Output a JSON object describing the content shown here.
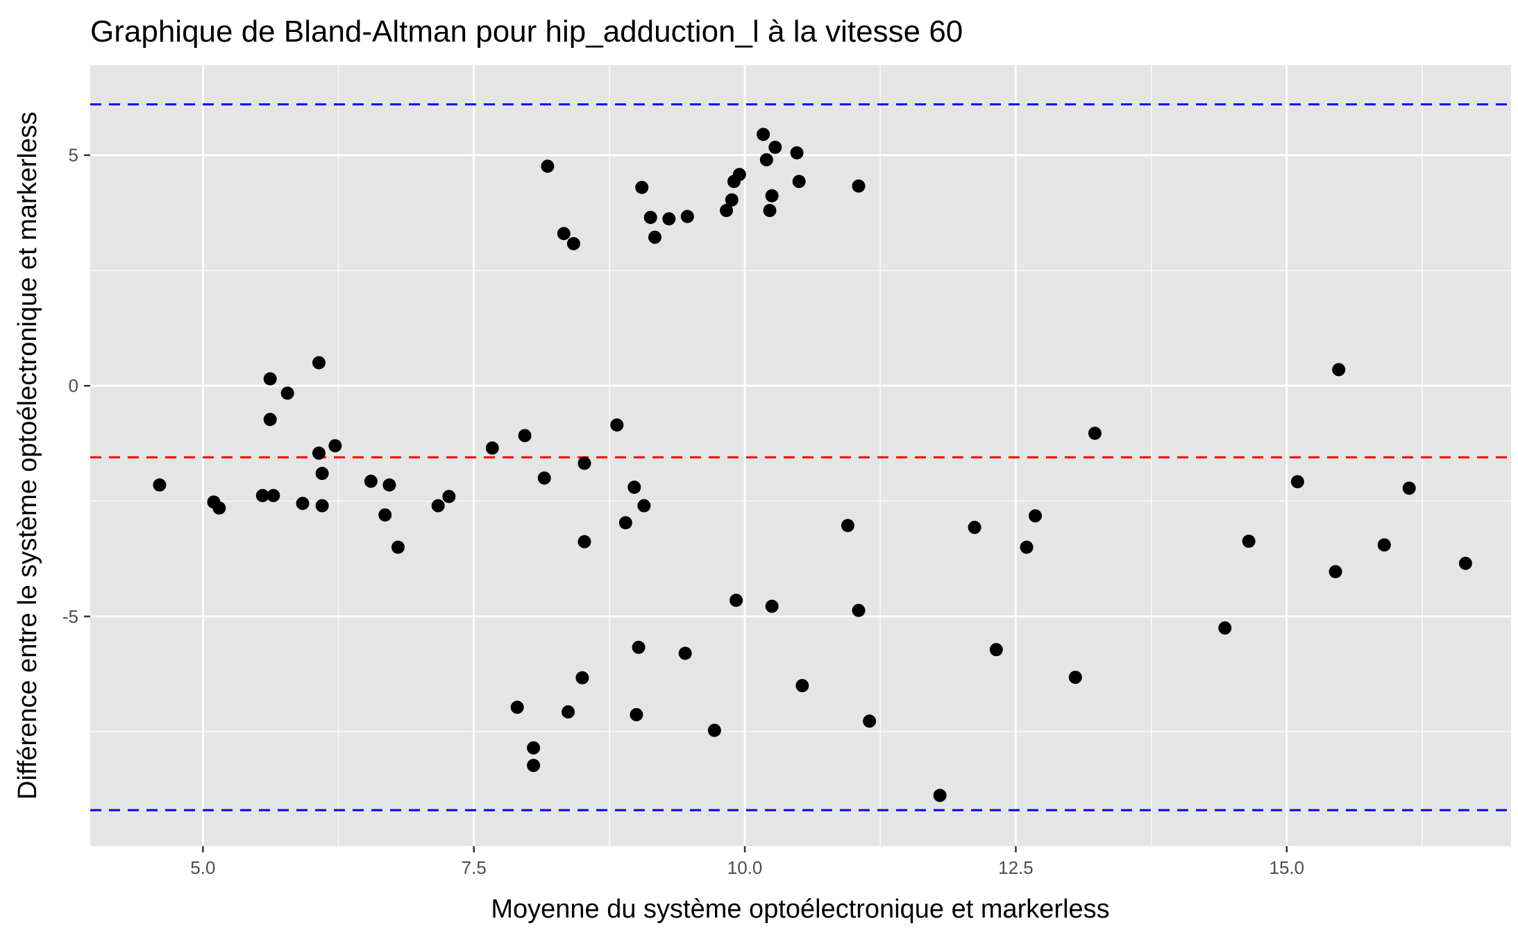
{
  "chart_data": {
    "type": "scatter",
    "title": "Graphique de Bland-Altman pour hip_adduction_l à la vitesse 60",
    "xlabel": "Moyenne du système optoélectronique et markerless",
    "ylabel": "Différence entre le système optoélectronique et markerless",
    "xlim": [
      3.96,
      17.07
    ],
    "ylim": [
      -9.98,
      6.95
    ],
    "x_ticks": [
      5.0,
      7.5,
      10.0,
      12.5,
      15.0
    ],
    "x_tick_labels": [
      "5.0",
      "7.5",
      "10.0",
      "12.5",
      "15.0"
    ],
    "y_ticks": [
      5,
      0,
      -5
    ],
    "y_tick_labels": [
      "5",
      "0",
      "-5"
    ],
    "grid": true,
    "reference_lines": [
      {
        "role": "upper_limit",
        "y": 6.1,
        "color": "#0000ff",
        "style": "dashed"
      },
      {
        "role": "mean_difference",
        "y": -1.55,
        "color": "#ff0000",
        "style": "dashed"
      },
      {
        "role": "lower_limit",
        "y": -9.2,
        "color": "#0000ff",
        "style": "dashed"
      }
    ],
    "points": [
      [
        4.6,
        -2.15
      ],
      [
        5.1,
        -2.52
      ],
      [
        5.15,
        -2.65
      ],
      [
        5.55,
        -2.38
      ],
      [
        5.65,
        -2.38
      ],
      [
        5.62,
        0.15
      ],
      [
        5.62,
        -0.73
      ],
      [
        5.78,
        -0.16
      ],
      [
        5.92,
        -2.55
      ],
      [
        6.07,
        0.5
      ],
      [
        6.07,
        -1.46
      ],
      [
        6.1,
        -1.9
      ],
      [
        6.1,
        -2.6
      ],
      [
        6.22,
        -1.3
      ],
      [
        6.55,
        -2.07
      ],
      [
        6.68,
        -2.8
      ],
      [
        6.72,
        -2.15
      ],
      [
        6.8,
        -3.5
      ],
      [
        7.17,
        -2.6
      ],
      [
        7.27,
        -2.4
      ],
      [
        7.67,
        -1.35
      ],
      [
        7.9,
        -6.97
      ],
      [
        7.97,
        -1.08
      ],
      [
        8.05,
        -7.85
      ],
      [
        8.05,
        -8.23
      ],
      [
        8.15,
        -2.0
      ],
      [
        8.18,
        4.76
      ],
      [
        8.33,
        3.3
      ],
      [
        8.37,
        -7.07
      ],
      [
        8.42,
        3.08
      ],
      [
        8.5,
        -6.33
      ],
      [
        8.52,
        -1.68
      ],
      [
        8.52,
        -3.38
      ],
      [
        8.82,
        -0.85
      ],
      [
        8.9,
        -2.97
      ],
      [
        8.98,
        -2.2
      ],
      [
        9.0,
        -7.13
      ],
      [
        9.02,
        -5.67
      ],
      [
        9.05,
        4.3
      ],
      [
        9.07,
        -2.6
      ],
      [
        9.13,
        3.65
      ],
      [
        9.17,
        3.22
      ],
      [
        9.3,
        3.62
      ],
      [
        9.45,
        -5.8
      ],
      [
        9.47,
        3.67
      ],
      [
        9.72,
        -7.47
      ],
      [
        9.83,
        3.8
      ],
      [
        9.88,
        4.03
      ],
      [
        9.9,
        4.43
      ],
      [
        9.92,
        -4.65
      ],
      [
        9.95,
        4.58
      ],
      [
        10.17,
        5.45
      ],
      [
        10.2,
        4.9
      ],
      [
        10.23,
        3.8
      ],
      [
        10.25,
        4.12
      ],
      [
        10.25,
        -4.78
      ],
      [
        10.28,
        5.17
      ],
      [
        10.48,
        5.05
      ],
      [
        10.5,
        4.43
      ],
      [
        10.53,
        -6.5
      ],
      [
        10.95,
        -3.03
      ],
      [
        11.05,
        -4.87
      ],
      [
        11.05,
        4.33
      ],
      [
        11.15,
        -7.27
      ],
      [
        11.8,
        -8.88
      ],
      [
        12.12,
        -3.07
      ],
      [
        12.32,
        -5.72
      ],
      [
        12.6,
        -3.5
      ],
      [
        12.68,
        -2.82
      ],
      [
        13.05,
        -6.32
      ],
      [
        13.23,
        -1.03
      ],
      [
        14.43,
        -5.25
      ],
      [
        14.65,
        -3.37
      ],
      [
        15.1,
        -2.08
      ],
      [
        15.45,
        -4.03
      ],
      [
        15.48,
        0.35
      ],
      [
        15.9,
        -3.45
      ],
      [
        16.13,
        -2.22
      ],
      [
        16.65,
        -3.85
      ]
    ],
    "point_color": "#000000",
    "panel_background": "#e5e5e5",
    "gridline_color": "#ffffff"
  }
}
